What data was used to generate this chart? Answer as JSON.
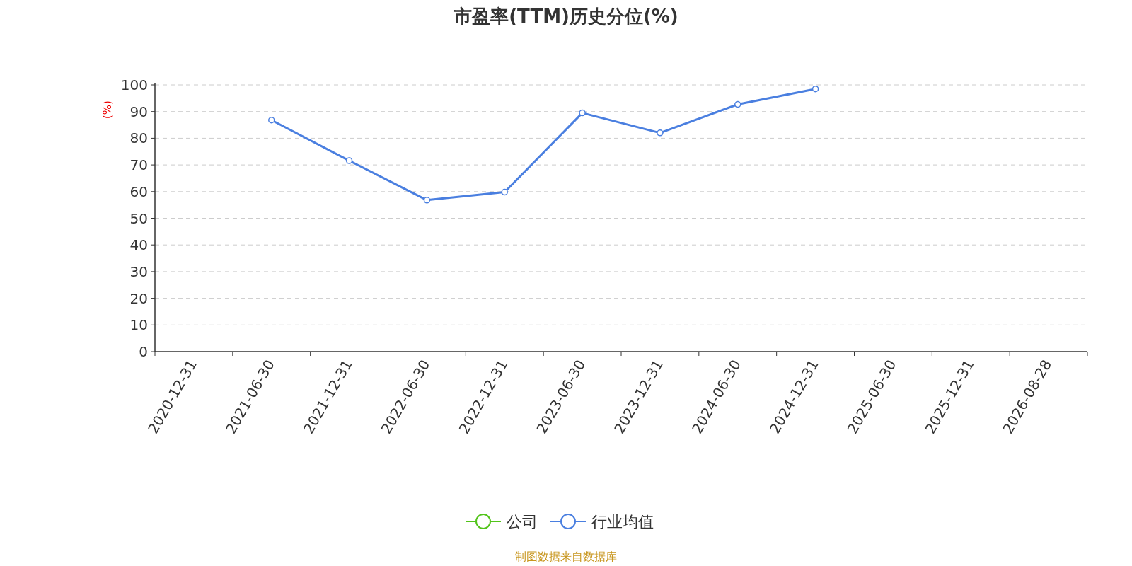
{
  "chart_data": {
    "type": "line",
    "title": "市盈率(TTM)历史分位(%)",
    "ylabel": "(%)",
    "categories": [
      "2020-12-31",
      "2021-06-30",
      "2021-12-31",
      "2022-06-30",
      "2022-12-31",
      "2023-06-30",
      "2023-12-31",
      "2024-06-30",
      "2024-12-31",
      "2025-06-30",
      "2025-12-31",
      "2026-08-28"
    ],
    "series": [
      {
        "name": "公司",
        "color": "#52c41a",
        "values": [
          null,
          null,
          null,
          null,
          null,
          null,
          null,
          null,
          null,
          null,
          null,
          null
        ]
      },
      {
        "name": "行业均值",
        "color": "#4a7fe0",
        "values": [
          null,
          86.8,
          71.6,
          56.8,
          59.8,
          89.5,
          82.0,
          92.7,
          98.5,
          null,
          null,
          null
        ]
      }
    ],
    "ylim": [
      0,
      100
    ],
    "yticks": [
      0,
      10,
      20,
      30,
      40,
      50,
      60,
      70,
      80,
      90,
      100
    ],
    "grid": "y",
    "legend": "bottom",
    "marker": "circle",
    "line_style": "solid",
    "annotations": [
      "制图数据来自数据库"
    ]
  }
}
